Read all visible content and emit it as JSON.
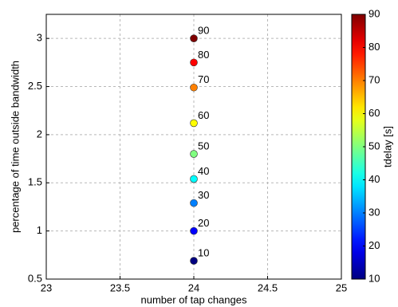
{
  "chart_data": {
    "type": "scatter",
    "xlabel": "number of tap changes",
    "ylabel": "percentage of time outside bandwidth",
    "colorbar_label": "tdelay [s]",
    "colormap": "jet",
    "x": [
      24,
      24,
      24,
      24,
      24,
      24,
      24,
      24,
      24
    ],
    "y": [
      0.69,
      1.0,
      1.29,
      1.54,
      1.8,
      2.12,
      2.49,
      2.75,
      3.0
    ],
    "c": [
      10,
      20,
      30,
      40,
      50,
      60,
      70,
      80,
      90
    ],
    "xlim": [
      23,
      25
    ],
    "xticks": [
      23,
      23.5,
      24,
      24.5,
      25
    ],
    "ylim": [
      0.5,
      3.25
    ],
    "yticks": [
      0.5,
      1,
      1.5,
      2,
      2.5,
      3
    ],
    "clim": [
      10,
      90
    ],
    "cticks": [
      10,
      20,
      30,
      40,
      50,
      60,
      70,
      80,
      90
    ],
    "grid": true
  }
}
